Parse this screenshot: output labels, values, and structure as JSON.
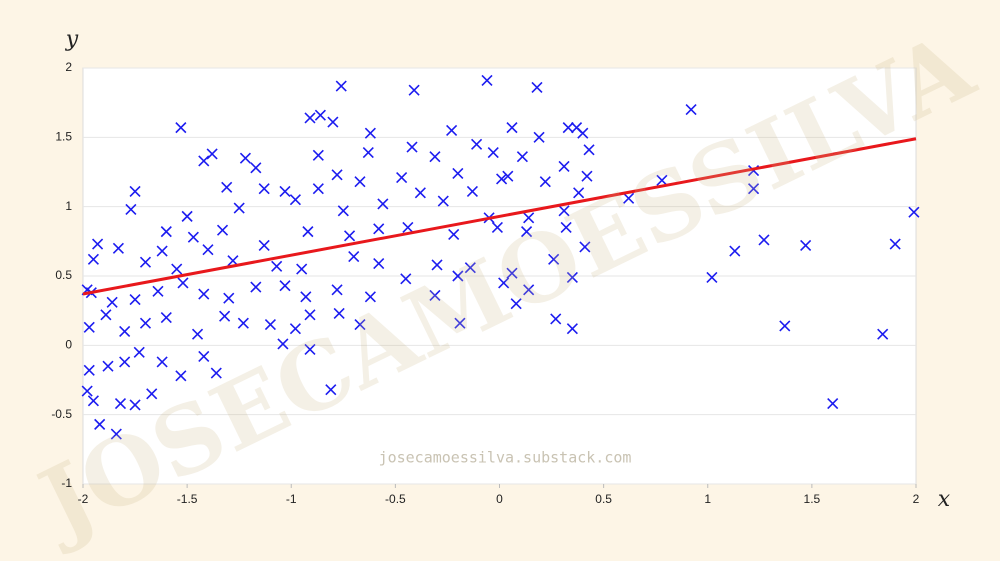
{
  "chart_data": {
    "type": "scatter",
    "x_label": "x",
    "y_label": "y",
    "watermark": "JOSECAMOESSILVA",
    "footer": "josecamoessilva.substack.com",
    "xlim": [
      -2,
      2
    ],
    "ylim": [
      -1,
      2
    ],
    "xticks": [
      -2,
      -1.5,
      -1,
      -0.5,
      0,
      0.5,
      1,
      1.5,
      2
    ],
    "yticks": [
      -1,
      -0.5,
      0,
      0.5,
      1,
      1.5,
      2
    ],
    "grid": true,
    "series": [
      {
        "marker": "x",
        "color": "#1c1cf0",
        "x": [
          -0.76,
          -0.41,
          -0.06,
          0.18,
          -0.91,
          -0.86,
          -0.8,
          0.06,
          -1.53,
          -0.62,
          -0.23,
          0.33,
          0.37,
          0.4,
          -0.42,
          -0.11,
          0.19,
          -1.38,
          -1.42,
          -1.22,
          -0.87,
          -0.63,
          -0.31,
          -0.03,
          0.11,
          0.43,
          -1.17,
          -0.78,
          -0.47,
          -0.2,
          0.01,
          0.22,
          0.31,
          -1.31,
          -1.13,
          -1.03,
          -0.87,
          -0.67,
          -0.38,
          -0.13,
          0.04,
          0.38,
          0.42,
          -1.75,
          -1.77,
          -1.5,
          -1.25,
          -0.98,
          -0.75,
          -0.56,
          -0.27,
          -0.05,
          0.14,
          0.31,
          -1.6,
          -1.47,
          -1.33,
          -1.13,
          -0.92,
          -0.72,
          -0.58,
          -0.44,
          -0.22,
          -0.01,
          0.13,
          0.32,
          0.41,
          -1.93,
          -1.83,
          -1.7,
          -1.62,
          -1.55,
          -1.4,
          -1.28,
          -1.07,
          -0.95,
          -0.7,
          -0.58,
          -0.3,
          -0.14,
          0.06,
          0.26,
          0.35,
          -1.96,
          -1.86,
          -1.75,
          -1.64,
          -1.52,
          -1.42,
          -1.3,
          -1.17,
          -1.03,
          -0.93,
          -0.78,
          -0.62,
          -0.45,
          -0.31,
          -0.2,
          0.02,
          0.14,
          -1.97,
          -1.89,
          -1.8,
          -1.7,
          -1.6,
          -1.45,
          -1.32,
          -1.23,
          -1.1,
          -0.98,
          -0.91,
          -0.77,
          -0.67,
          -0.19,
          0.08,
          0.27,
          -1.97,
          -1.88,
          -1.8,
          -1.73,
          -1.62,
          -1.53,
          -1.42,
          -1.36,
          -1.04,
          -0.91,
          -1.98,
          -1.95,
          -1.92,
          -1.84,
          -1.82,
          -1.75,
          -1.67,
          -0.81,
          -1.95,
          -1.98,
          0.92,
          1.22,
          1.22,
          1.27,
          1.13,
          1.02,
          1.47,
          1.37,
          1.6,
          1.84,
          1.9,
          1.99,
          0.62,
          0.78,
          0.35
        ],
        "values": [
          1.87,
          1.84,
          1.91,
          1.86,
          1.64,
          1.66,
          1.61,
          1.57,
          1.57,
          1.53,
          1.55,
          1.57,
          1.57,
          1.53,
          1.43,
          1.45,
          1.5,
          1.38,
          1.33,
          1.35,
          1.37,
          1.39,
          1.36,
          1.39,
          1.36,
          1.41,
          1.28,
          1.23,
          1.21,
          1.24,
          1.2,
          1.18,
          1.29,
          1.14,
          1.13,
          1.11,
          1.13,
          1.18,
          1.1,
          1.11,
          1.22,
          1.1,
          1.22,
          1.11,
          0.98,
          0.93,
          0.99,
          1.05,
          0.97,
          1.02,
          1.04,
          0.92,
          0.92,
          0.97,
          0.82,
          0.78,
          0.83,
          0.72,
          0.82,
          0.79,
          0.84,
          0.85,
          0.8,
          0.85,
          0.82,
          0.85,
          0.71,
          0.73,
          0.7,
          0.6,
          0.68,
          0.55,
          0.69,
          0.61,
          0.57,
          0.55,
          0.64,
          0.59,
          0.58,
          0.56,
          0.52,
          0.62,
          0.49,
          0.38,
          0.31,
          0.33,
          0.39,
          0.45,
          0.37,
          0.34,
          0.42,
          0.43,
          0.35,
          0.4,
          0.35,
          0.48,
          0.36,
          0.5,
          0.45,
          0.4,
          0.13,
          0.22,
          0.1,
          0.16,
          0.2,
          0.08,
          0.21,
          0.16,
          0.15,
          0.12,
          0.22,
          0.23,
          0.15,
          0.16,
          0.3,
          0.19,
          -0.18,
          -0.15,
          -0.12,
          -0.05,
          -0.12,
          -0.22,
          -0.08,
          -0.2,
          0.01,
          -0.03,
          -0.33,
          -0.4,
          -0.57,
          -0.64,
          -0.42,
          -0.43,
          -0.35,
          -0.32,
          0.62,
          0.4,
          1.7,
          1.26,
          1.13,
          0.76,
          0.68,
          0.49,
          0.72,
          0.14,
          -0.42,
          0.08,
          0.73,
          0.96,
          1.06,
          1.19,
          0.12
        ]
      },
      {
        "marker": "line",
        "color": "#e8181c",
        "x": [
          -2,
          2
        ],
        "values": [
          0.37,
          1.49
        ]
      }
    ]
  }
}
